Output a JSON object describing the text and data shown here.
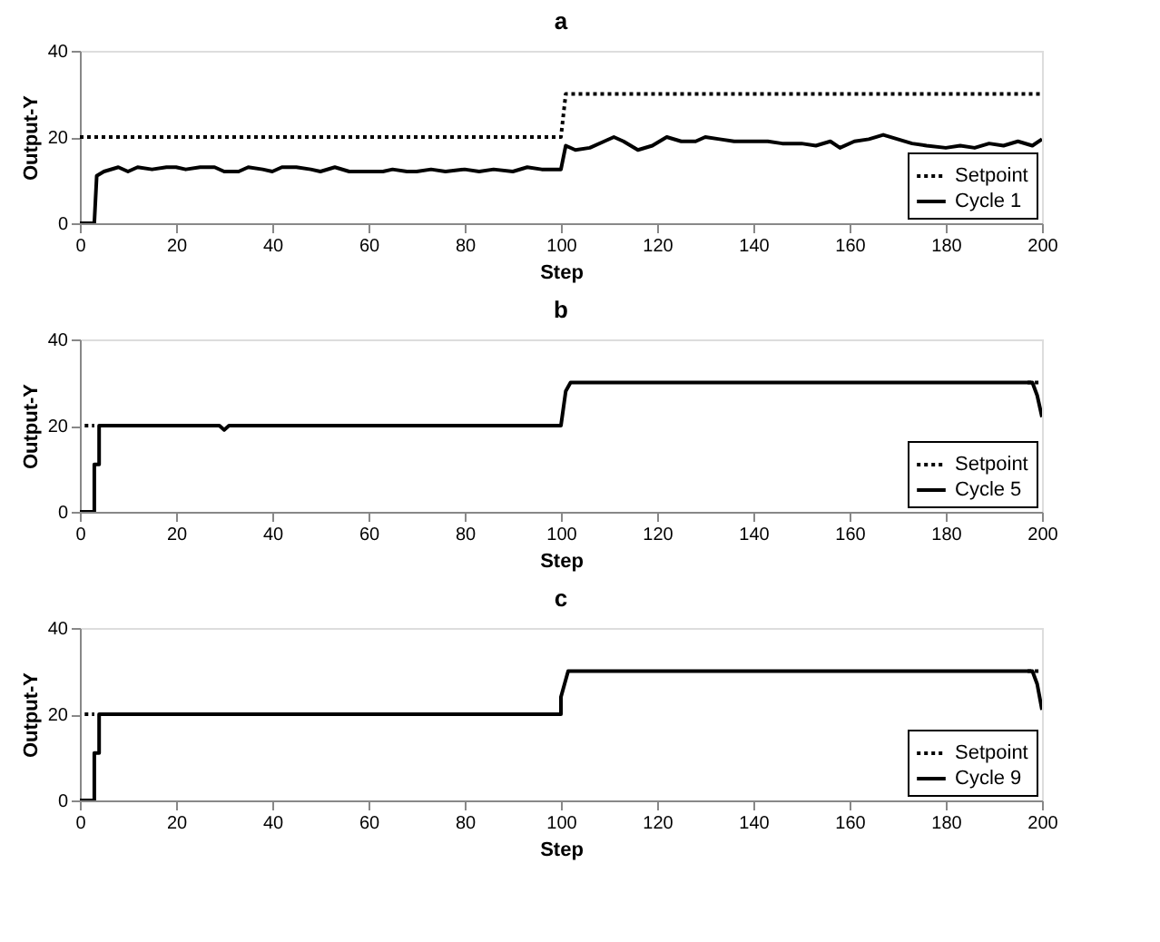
{
  "chart_data": [
    {
      "type": "line",
      "title": "a",
      "xlabel": "Step",
      "ylabel": "Output-Y",
      "xlim": [
        0,
        200
      ],
      "ylim": [
        0,
        40
      ],
      "xticks": [
        0,
        20,
        40,
        60,
        80,
        100,
        120,
        140,
        160,
        180,
        200
      ],
      "yticks": [
        0,
        20,
        40
      ],
      "grid": false,
      "legend": "bottom right",
      "series": [
        {
          "name": "Setpoint",
          "color": "#000000",
          "line_style": "dotted",
          "x": [
            0,
            100,
            101,
            200
          ],
          "values": [
            20,
            20,
            30,
            30
          ]
        },
        {
          "name": "Cycle 1",
          "color": "#000000",
          "line_style": "solid",
          "x": [
            0,
            3,
            3.5,
            5,
            8,
            10,
            12,
            15,
            18,
            20,
            22,
            25,
            28,
            30,
            33,
            35,
            38,
            40,
            42,
            45,
            48,
            50,
            53,
            56,
            60,
            63,
            65,
            68,
            70,
            73,
            76,
            80,
            83,
            86,
            90,
            93,
            96,
            100,
            101,
            103,
            106,
            109,
            111,
            113,
            116,
            119,
            122,
            125,
            128,
            130,
            133,
            136,
            140,
            143,
            146,
            150,
            153,
            156,
            158,
            161,
            164,
            167,
            170,
            173,
            176,
            180,
            183,
            186,
            189,
            192,
            195,
            198,
            200
          ],
          "values": [
            0,
            0,
            11,
            12,
            13,
            12,
            13,
            12.5,
            13,
            13,
            12.5,
            13,
            13,
            12,
            12,
            13,
            12.5,
            12,
            13,
            13,
            12.5,
            12,
            13,
            12,
            12,
            12,
            12.5,
            12,
            12,
            12.5,
            12,
            12.5,
            12,
            12.5,
            12,
            13,
            12.5,
            12.5,
            18,
            17,
            17.5,
            19,
            20,
            19,
            17,
            18,
            20,
            19,
            19,
            20,
            19.5,
            19,
            19,
            19,
            18.5,
            18.5,
            18,
            19,
            17.5,
            19,
            19.5,
            20.5,
            19.5,
            18.5,
            18,
            17.5,
            18,
            17.5,
            18.5,
            18,
            19,
            18,
            19.5
          ]
        }
      ]
    },
    {
      "type": "line",
      "title": "b",
      "xlabel": "Step",
      "ylabel": "Output-Y",
      "xlim": [
        0,
        200
      ],
      "ylim": [
        0,
        40
      ],
      "xticks": [
        0,
        20,
        40,
        60,
        80,
        100,
        120,
        140,
        160,
        180,
        200
      ],
      "yticks": [
        0,
        20,
        40
      ],
      "grid": false,
      "legend": "bottom right",
      "series": [
        {
          "name": "Setpoint",
          "color": "#000000",
          "line_style": "dotted",
          "x": [
            1,
            3,
            50,
            197,
            200
          ],
          "values": [
            20,
            20,
            null,
            30,
            30
          ]
        },
        {
          "name": "Cycle 5",
          "color": "#000000",
          "line_style": "solid",
          "x": [
            0,
            3,
            3,
            4,
            4,
            29,
            30,
            31,
            100,
            101,
            102,
            198,
            199,
            200
          ],
          "values": [
            0,
            0,
            11,
            11,
            20,
            20,
            19,
            20,
            20,
            28,
            30,
            30,
            27,
            22
          ]
        }
      ]
    },
    {
      "type": "line",
      "title": "c",
      "xlabel": "Step",
      "ylabel": "Output-Y",
      "xlim": [
        0,
        200
      ],
      "ylim": [
        0,
        40
      ],
      "xticks": [
        0,
        20,
        40,
        60,
        80,
        100,
        120,
        140,
        160,
        180,
        200
      ],
      "yticks": [
        0,
        20,
        40
      ],
      "grid": false,
      "legend": "bottom right",
      "series": [
        {
          "name": "Setpoint",
          "color": "#000000",
          "line_style": "dotted",
          "x": [
            1,
            3,
            50,
            197,
            200
          ],
          "values": [
            20,
            20,
            null,
            30,
            30
          ]
        },
        {
          "name": "Cycle 9",
          "color": "#000000",
          "line_style": "solid",
          "x": [
            0,
            3,
            3,
            4,
            4,
            100,
            100,
            101,
            101.5,
            198,
            199,
            200
          ],
          "values": [
            0,
            0,
            11,
            11,
            20,
            20,
            24,
            28,
            30,
            30,
            27,
            21
          ]
        }
      ]
    }
  ]
}
